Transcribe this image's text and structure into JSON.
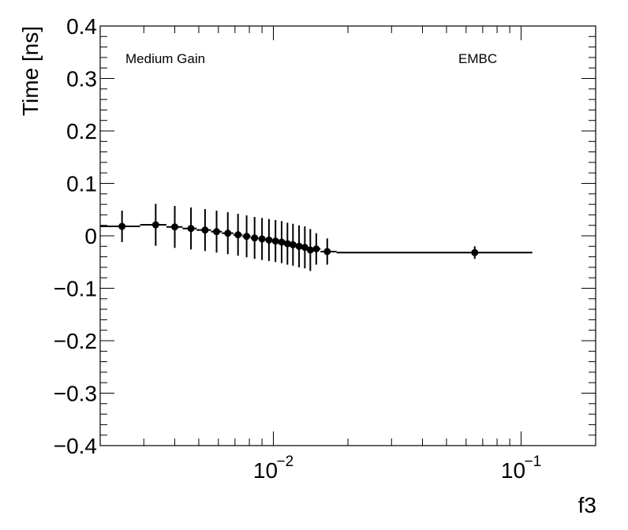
{
  "chart_data": {
    "type": "scatter",
    "xscale": "log",
    "xlim": [
      0.002,
      0.2
    ],
    "ylim": [
      -0.4,
      0.4
    ],
    "xlabel": "f3",
    "ylabel": "Time [ns]",
    "yticks": [
      "0.4",
      "0.3",
      "0.2",
      "0.1",
      "0",
      "−0.1",
      "−0.2",
      "−0.3",
      "−0.4"
    ],
    "ytick_values": [
      0.4,
      0.3,
      0.2,
      0.1,
      0,
      -0.1,
      -0.2,
      -0.3,
      -0.4
    ],
    "xticks": [
      {
        "value": 0.01,
        "base": "10",
        "exp": "−2"
      },
      {
        "value": 0.1,
        "base": "10",
        "exp": "−1"
      }
    ],
    "annotations": [
      {
        "id": "gain",
        "text": "Medium Gain"
      },
      {
        "id": "region",
        "text": "EMBC"
      }
    ],
    "points": [
      {
        "x": 0.00245,
        "y": 0.018,
        "err": 0.03,
        "xlo": 0.002,
        "xhi": 0.0029
      },
      {
        "x": 0.00335,
        "y": 0.021,
        "err": 0.04,
        "xlo": 0.0029,
        "xhi": 0.0037
      },
      {
        "x": 0.004,
        "y": 0.017,
        "err": 0.04,
        "xlo": 0.0037,
        "xhi": 0.0043
      },
      {
        "x": 0.00465,
        "y": 0.014,
        "err": 0.04,
        "xlo": 0.0043,
        "xhi": 0.0049
      },
      {
        "x": 0.0053,
        "y": 0.011,
        "err": 0.04,
        "xlo": 0.0049,
        "xhi": 0.0056
      },
      {
        "x": 0.0059,
        "y": 0.008,
        "err": 0.04,
        "xlo": 0.0056,
        "xhi": 0.0062
      },
      {
        "x": 0.00655,
        "y": 0.005,
        "err": 0.04,
        "xlo": 0.0062,
        "xhi": 0.0069
      },
      {
        "x": 0.0072,
        "y": 0.002,
        "err": 0.04,
        "xlo": 0.0069,
        "xhi": 0.0075
      },
      {
        "x": 0.0078,
        "y": -0.001,
        "err": 0.04,
        "xlo": 0.0075,
        "xhi": 0.0081
      },
      {
        "x": 0.0084,
        "y": -0.004,
        "err": 0.04,
        "xlo": 0.0081,
        "xhi": 0.0087
      },
      {
        "x": 0.009,
        "y": -0.006,
        "err": 0.04,
        "xlo": 0.0087,
        "xhi": 0.0093
      },
      {
        "x": 0.0096,
        "y": -0.008,
        "err": 0.04,
        "xlo": 0.0093,
        "xhi": 0.0099
      },
      {
        "x": 0.0102,
        "y": -0.01,
        "err": 0.04,
        "xlo": 0.0099,
        "xhi": 0.0105
      },
      {
        "x": 0.0108,
        "y": -0.012,
        "err": 0.04,
        "xlo": 0.0105,
        "xhi": 0.0111
      },
      {
        "x": 0.0114,
        "y": -0.015,
        "err": 0.04,
        "xlo": 0.0111,
        "xhi": 0.0117
      },
      {
        "x": 0.012,
        "y": -0.017,
        "err": 0.04,
        "xlo": 0.0117,
        "xhi": 0.0123
      },
      {
        "x": 0.0127,
        "y": -0.02,
        "err": 0.04,
        "xlo": 0.0123,
        "xhi": 0.013
      },
      {
        "x": 0.0134,
        "y": -0.022,
        "err": 0.04,
        "xlo": 0.013,
        "xhi": 0.0137
      },
      {
        "x": 0.0141,
        "y": -0.027,
        "err": 0.04,
        "xlo": 0.0137,
        "xhi": 0.0144
      },
      {
        "x": 0.0149,
        "y": -0.025,
        "err": 0.03,
        "xlo": 0.0144,
        "xhi": 0.0155
      },
      {
        "x": 0.0165,
        "y": -0.03,
        "err": 0.025,
        "xlo": 0.0155,
        "xhi": 0.018
      },
      {
        "x": 0.065,
        "y": -0.032,
        "err": 0.012,
        "xlo": 0.018,
        "xhi": 0.111
      }
    ]
  }
}
